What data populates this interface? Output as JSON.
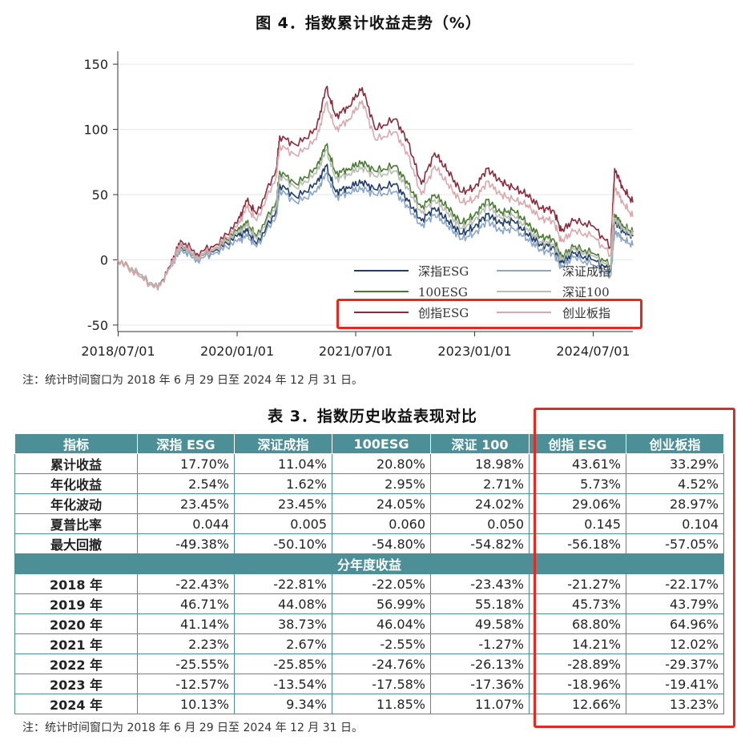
{
  "figure": {
    "title": "图 4．指数累计收益走势（%）",
    "note": "注：统计时间窗口为 2018 年 6 月 29 日至 2024 年 12 月 31 日。"
  },
  "chart_data": {
    "type": "line",
    "title": "图 4．指数累计收益走势（%）",
    "xlabel": "",
    "ylabel": "",
    "ylim": [
      -55,
      155
    ],
    "y_ticks": [
      150,
      100,
      50,
      0,
      -50
    ],
    "x_ticks": [
      "2018/07/01",
      "2020/01/01",
      "2021/07/01",
      "2023/01/01",
      "2024/07/01"
    ],
    "x_range": [
      "2018/06/29",
      "2024/12/31"
    ],
    "grid": "horizontal",
    "legend_position": "bottom-right",
    "x": [
      "2018/06/29",
      "2018/09/30",
      "2018/12/31",
      "2019/02/28",
      "2019/04/15",
      "2019/06/30",
      "2019/09/30",
      "2019/12/31",
      "2020/02/15",
      "2020/03/31",
      "2020/06/30",
      "2020/07/15",
      "2020/09/30",
      "2020/12/31",
      "2021/02/15",
      "2021/03/31",
      "2021/05/31",
      "2021/07/31",
      "2021/09/30",
      "2021/12/31",
      "2022/02/28",
      "2022/04/30",
      "2022/06/30",
      "2022/08/31",
      "2022/10/31",
      "2022/12/31",
      "2023/02/28",
      "2023/04/30",
      "2023/06/30",
      "2023/08/31",
      "2023/10/31",
      "2023/12/31",
      "2024/02/05",
      "2024/03/31",
      "2024/06/30",
      "2024/09/20",
      "2024/10/08",
      "2024/11/15",
      "2024/12/31"
    ],
    "series": [
      {
        "name": "深指ESG",
        "color": "#1f3d6b",
        "values": [
          0,
          -10,
          -22,
          -5,
          10,
          2,
          8,
          18,
          22,
          12,
          38,
          58,
          48,
          58,
          72,
          52,
          56,
          60,
          54,
          58,
          45,
          30,
          40,
          30,
          20,
          25,
          35,
          28,
          30,
          20,
          12,
          10,
          -2,
          5,
          0,
          -8,
          30,
          22,
          18
        ]
      },
      {
        "name": "深证成指",
        "color": "#8aa6c4",
        "values": [
          0,
          -10,
          -22,
          -6,
          8,
          0,
          6,
          14,
          18,
          10,
          34,
          54,
          44,
          52,
          66,
          48,
          52,
          55,
          50,
          52,
          40,
          26,
          35,
          26,
          16,
          20,
          30,
          22,
          24,
          16,
          8,
          5,
          -6,
          2,
          -4,
          -12,
          22,
          16,
          11
        ]
      },
      {
        "name": "100ESG",
        "color": "#4a7b32",
        "values": [
          0,
          -10,
          -22,
          -5,
          12,
          3,
          10,
          22,
          28,
          18,
          45,
          68,
          58,
          70,
          88,
          66,
          70,
          75,
          68,
          72,
          58,
          40,
          50,
          40,
          28,
          34,
          46,
          36,
          38,
          28,
          18,
          16,
          2,
          10,
          5,
          -4,
          35,
          26,
          21
        ]
      },
      {
        "name": "深证100",
        "color": "#b8bdb2",
        "values": [
          0,
          -10,
          -22,
          -6,
          11,
          2,
          9,
          20,
          26,
          16,
          42,
          65,
          55,
          66,
          84,
          62,
          66,
          71,
          64,
          68,
          54,
          36,
          46,
          36,
          24,
          30,
          42,
          32,
          34,
          24,
          14,
          12,
          0,
          8,
          3,
          -6,
          32,
          24,
          19
        ]
      },
      {
        "name": "创指ESG",
        "color": "#8b2a3a",
        "values": [
          0,
          -12,
          -23,
          -4,
          15,
          5,
          12,
          28,
          45,
          35,
          70,
          95,
          88,
          100,
          132,
          110,
          118,
          132,
          100,
          108,
          90,
          58,
          82,
          68,
          52,
          55,
          70,
          60,
          55,
          50,
          40,
          38,
          22,
          30,
          26,
          10,
          70,
          55,
          44
        ]
      },
      {
        "name": "创业板指",
        "color": "#d8a8ae",
        "values": [
          0,
          -12,
          -23,
          -5,
          13,
          3,
          10,
          25,
          40,
          30,
          64,
          88,
          80,
          92,
          120,
          100,
          108,
          122,
          92,
          98,
          80,
          50,
          72,
          58,
          44,
          46,
          60,
          50,
          46,
          42,
          32,
          30,
          14,
          22,
          18,
          4,
          56,
          44,
          33
        ]
      }
    ]
  },
  "table": {
    "title": "表 3．指数历史收益表现对比",
    "headers": [
      "指标",
      "深指 ESG",
      "深证成指",
      "100ESG",
      "深证 100",
      "创指 ESG",
      "创业板指"
    ],
    "metric_rows": [
      {
        "label": "累计收益",
        "values": [
          "17.70%",
          "11.04%",
          "20.80%",
          "18.98%",
          "43.61%",
          "33.29%"
        ]
      },
      {
        "label": "年化收益",
        "values": [
          "2.54%",
          "1.62%",
          "2.95%",
          "2.71%",
          "5.73%",
          "4.52%"
        ]
      },
      {
        "label": "年化波动",
        "values": [
          "23.45%",
          "23.45%",
          "24.05%",
          "24.02%",
          "29.06%",
          "28.97%"
        ]
      },
      {
        "label": "夏普比率",
        "values": [
          "0.044",
          "0.005",
          "0.060",
          "0.050",
          "0.145",
          "0.104"
        ]
      },
      {
        "label": "最大回撤",
        "values": [
          "-49.38%",
          "-50.10%",
          "-54.80%",
          "-54.82%",
          "-56.18%",
          "-57.05%"
        ]
      }
    ],
    "section_label": "分年度收益",
    "year_rows": [
      {
        "label": "2018 年",
        "values": [
          "-22.43%",
          "-22.81%",
          "-22.05%",
          "-23.43%",
          "-21.27%",
          "-22.17%"
        ]
      },
      {
        "label": "2019 年",
        "values": [
          "46.71%",
          "44.08%",
          "56.99%",
          "55.18%",
          "45.73%",
          "43.79%"
        ]
      },
      {
        "label": "2020 年",
        "values": [
          "41.14%",
          "38.73%",
          "46.04%",
          "49.58%",
          "68.80%",
          "64.96%"
        ]
      },
      {
        "label": "2021 年",
        "values": [
          "2.23%",
          "2.67%",
          "-2.55%",
          "-1.27%",
          "14.21%",
          "12.02%"
        ]
      },
      {
        "label": "2022 年",
        "values": [
          "-25.55%",
          "-25.85%",
          "-24.76%",
          "-26.13%",
          "-28.89%",
          "-29.37%"
        ]
      },
      {
        "label": "2023 年",
        "values": [
          "-12.57%",
          "-13.54%",
          "-17.58%",
          "-17.36%",
          "-18.96%",
          "-19.41%"
        ]
      },
      {
        "label": "2024 年",
        "values": [
          "10.13%",
          "9.34%",
          "11.85%",
          "11.07%",
          "12.66%",
          "13.23%"
        ]
      }
    ],
    "note": "注：统计时间窗口为 2018 年 6 月 29 日至 2024 年 12 月 31 日。"
  },
  "colors": {
    "header_bg": "#4d8f96",
    "highlight": "#e8281f"
  }
}
